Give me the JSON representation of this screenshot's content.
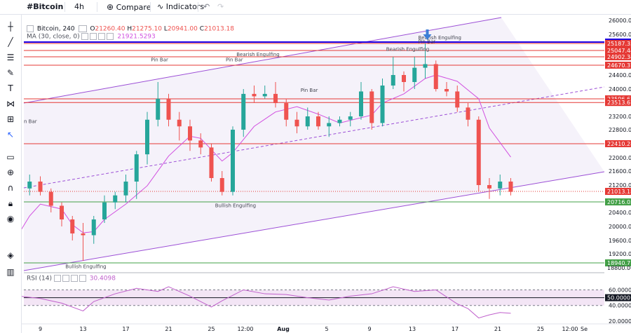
{
  "topbar": {
    "symbol": "#Bitcoin",
    "interval": "4h",
    "compare_label": "Compare",
    "indicators_label": "Indicators"
  },
  "legend": {
    "title": "Bitcoin, 240",
    "open_label": "O",
    "open": "21260.40",
    "high_label": "H",
    "high": "21275.10",
    "low_label": "L",
    "low": "20941.00",
    "close_label": "C",
    "close": "21013.18",
    "ma_label": "MA (30, close, 0)",
    "ma_value": "21921.5293",
    "rsi_label": "RSI (14)",
    "rsi_value": "30.4098"
  },
  "toolbar": {
    "icons": [
      "crosshair-icon",
      "trendline-icon",
      "fib-icon",
      "brush-icon",
      "text-icon",
      "pattern-icon",
      "measure-icon",
      "arrow-icon",
      "ruler-icon",
      "zoom-icon",
      "magnet-icon",
      "lock-icon",
      "eye-icon",
      "layers-icon",
      "trash-icon"
    ]
  },
  "colors": {
    "candle_up": "#26a69a",
    "candle_down": "#ef5350",
    "ma": "#d150e0",
    "channel": "#9c4fd6",
    "resistance": "#e53935",
    "support": "#43a047",
    "blue_level": "#1b00e6",
    "rsi": "#c060cc",
    "arrow": "#3d7ed6"
  },
  "chart_data": {
    "type": "candlestick",
    "interval": "4h",
    "ylim": [
      18400,
      26000
    ],
    "y_ticks": [
      "26000.00",
      "25600.00",
      "24400.00",
      "24000.00",
      "23200.00",
      "22800.00",
      "22000.00",
      "21600.00",
      "21200.00",
      "20400.00",
      "20000.00",
      "19600.00",
      "19200.00"
    ],
    "x_ticks": [
      "9",
      "13",
      "17",
      "21",
      "25",
      "12:00",
      "Aug",
      "5",
      "9",
      "13",
      "17",
      "21",
      "25",
      "12:00",
      "Se"
    ],
    "price_labels": [
      {
        "value": "25367.00",
        "kind": "blue_level"
      },
      {
        "value": "25187.35",
        "kind": "resistance"
      },
      {
        "value": "25047.44",
        "kind": "resistance"
      },
      {
        "value": "24902.34",
        "kind": "resistance"
      },
      {
        "value": "24670.37",
        "kind": "resistance"
      },
      {
        "value": "23596.63",
        "kind": "resistance"
      },
      {
        "value": "23513.67",
        "kind": "resistance"
      },
      {
        "value": "22410.28",
        "kind": "resistance"
      },
      {
        "value": "21013.18",
        "kind": "current"
      },
      {
        "value": "20716.03",
        "kind": "support"
      },
      {
        "value": "18940.77",
        "kind": "support"
      },
      {
        "value": "18800.00",
        "kind": "plain"
      }
    ],
    "annotations": [
      {
        "text": "Pin Bar",
        "x": "Jul 20",
        "y": 24780
      },
      {
        "text": "Pin Bar",
        "x": "Jul 27",
        "y": 24780
      },
      {
        "text": "Bearish Engulfing",
        "x": "Jul 28",
        "y": 24920
      },
      {
        "text": "Pin Bar",
        "x": "Aug 3",
        "y": 23880
      },
      {
        "text": "Bearish Engulfing",
        "x": "Aug 11",
        "y": 25040
      },
      {
        "text": "Pin Bar",
        "x": "Aug 14",
        "y": 25250
      },
      {
        "text": "Bearish Engulfing",
        "x": "Aug 14",
        "y": 25450
      },
      {
        "text": "Bullish Engulfing",
        "x": "Jul 26",
        "y": 20560
      },
      {
        "text": "Bullish Engulfing",
        "x": "Jul 12",
        "y": 18730
      },
      {
        "text": "n Bar",
        "x": "Jul 7",
        "y": 23000
      }
    ],
    "series": [
      {
        "name": "MA (30, close, 0)",
        "points": [
          [
            "Jul 7",
            19800
          ],
          [
            "Jul 8",
            20300
          ],
          [
            "Jul 9",
            20650
          ],
          [
            "Jul 11",
            20500
          ],
          [
            "Jul 12",
            20050
          ],
          [
            "Jul 13",
            19820
          ],
          [
            "Jul 14",
            19850
          ],
          [
            "Jul 15",
            20200
          ],
          [
            "Jul 17",
            20650
          ],
          [
            "Jul 19",
            21180
          ],
          [
            "Jul 21",
            22050
          ],
          [
            "Jul 23",
            22620
          ],
          [
            "Jul 24",
            22560
          ],
          [
            "Jul 26",
            21900
          ],
          [
            "Jul 27",
            22150
          ],
          [
            "Jul 29",
            22900
          ],
          [
            "Jul 31",
            23300
          ],
          [
            "Aug 2",
            23420
          ],
          [
            "Aug 4",
            23250
          ],
          [
            "Aug 6",
            23000
          ],
          [
            "Aug 9",
            23230
          ],
          [
            "Aug 10",
            23500
          ],
          [
            "Aug 12",
            23800
          ],
          [
            "Aug 14",
            24300
          ],
          [
            "Aug 15",
            24400
          ],
          [
            "Aug 17",
            24220
          ],
          [
            "Aug 19",
            23600
          ],
          [
            "Aug 20",
            22850
          ],
          [
            "Aug 22",
            22020
          ]
        ]
      },
      {
        "name": "RSI (14)",
        "ylim": [
          20,
          75
        ],
        "points": [
          [
            "Jul 7",
            52
          ],
          [
            "Jul 9",
            49
          ],
          [
            "Jul 11",
            43
          ],
          [
            "Jul 13",
            33
          ],
          [
            "Jul 14",
            45
          ],
          [
            "Jul 16",
            55
          ],
          [
            "Jul 18",
            62
          ],
          [
            "Jul 20",
            58
          ],
          [
            "Jul 21",
            64
          ],
          [
            "Jul 23",
            52
          ],
          [
            "Jul 25",
            38
          ],
          [
            "Jul 26",
            46
          ],
          [
            "Jul 28",
            60
          ],
          [
            "Jul 30",
            55
          ],
          [
            "Aug 1",
            54
          ],
          [
            "Aug 3",
            50
          ],
          [
            "Aug 5",
            47
          ],
          [
            "Aug 7",
            52
          ],
          [
            "Aug 9",
            55
          ],
          [
            "Aug 11",
            64
          ],
          [
            "Aug 13",
            58
          ],
          [
            "Aug 15",
            60
          ],
          [
            "Aug 17",
            42
          ],
          [
            "Aug 18",
            36
          ],
          [
            "Aug 19",
            24
          ],
          [
            "Aug 20",
            28
          ],
          [
            "Aug 21",
            31
          ],
          [
            "Aug 22",
            30
          ]
        ]
      }
    ],
    "rsi_levels": [
      "60.0000",
      "50.0000",
      "40.0000",
      "20.0000"
    ],
    "candles": [
      [
        "Jul 7",
        20900,
        21400,
        20500,
        21100
      ],
      [
        "Jul 8",
        21100,
        21500,
        20900,
        21300
      ],
      [
        "Jul 9",
        21300,
        21450,
        20900,
        21000
      ],
      [
        "Jul 10",
        21000,
        21100,
        20400,
        20600
      ],
      [
        "Jul 11",
        20600,
        20700,
        20000,
        20200
      ],
      [
        "Jul 12",
        20200,
        20300,
        19600,
        19800
      ],
      [
        "Jul 13",
        19800,
        20100,
        19000,
        19750
      ],
      [
        "Jul 14",
        19750,
        20300,
        19500,
        20200
      ],
      [
        "Jul 15",
        20200,
        20900,
        20100,
        20700
      ],
      [
        "Jul 16",
        20700,
        21000,
        20500,
        20900
      ],
      [
        "Jul 17",
        20900,
        21500,
        20700,
        21300
      ],
      [
        "Jul 18",
        21300,
        22200,
        20800,
        22100
      ],
      [
        "Jul 19",
        22100,
        23300,
        21800,
        23100
      ],
      [
        "Jul 20",
        23100,
        24200,
        22900,
        23600
      ],
      [
        "Jul 21",
        23600,
        23800,
        22900,
        23100
      ],
      [
        "Jul 22",
        23100,
        23300,
        22500,
        22900
      ],
      [
        "Jul 23",
        22900,
        23100,
        22200,
        22500
      ],
      [
        "Jul 24",
        22500,
        22700,
        22100,
        22300
      ],
      [
        "Jul 25",
        22300,
        22400,
        21300,
        21400
      ],
      [
        "Jul 26",
        21400,
        21600,
        20900,
        21000
      ],
      [
        "Jul 27",
        21000,
        22900,
        20900,
        22800
      ],
      [
        "Jul 28",
        22800,
        24000,
        22600,
        23800
      ],
      [
        "Jul 29",
        23800,
        24100,
        23500,
        23700
      ],
      [
        "Jul 30",
        23700,
        24100,
        23600,
        23800
      ],
      [
        "Jul 31",
        23800,
        24200,
        23400,
        23500
      ],
      [
        "Aug 1",
        23500,
        23600,
        22900,
        23100
      ],
      [
        "Aug 2",
        23100,
        23300,
        22700,
        22900
      ],
      [
        "Aug 3",
        22900,
        23400,
        22800,
        23200
      ],
      [
        "Aug 4",
        23200,
        23300,
        22800,
        22900
      ],
      [
        "Aug 5",
        22900,
        23200,
        22600,
        23000
      ],
      [
        "Aug 6",
        23000,
        23200,
        22900,
        23100
      ],
      [
        "Aug 7",
        23100,
        23300,
        22900,
        23200
      ],
      [
        "Aug 8",
        23200,
        24200,
        23100,
        23900
      ],
      [
        "Aug 9",
        23900,
        24000,
        22800,
        23000
      ],
      [
        "Aug 10",
        23000,
        24300,
        22900,
        24100
      ],
      [
        "Aug 11",
        24100,
        24900,
        24000,
        24400
      ],
      [
        "Aug 12",
        24400,
        24500,
        23900,
        24200
      ],
      [
        "Aug 13",
        24200,
        24900,
        24000,
        24600
      ],
      [
        "Aug 14",
        24600,
        25200,
        24300,
        24700
      ],
      [
        "Aug 15",
        24700,
        24800,
        23900,
        24000
      ],
      [
        "Aug 16",
        24000,
        24200,
        23700,
        23900
      ],
      [
        "Aug 17",
        23900,
        24100,
        23300,
        23400
      ],
      [
        "Aug 18",
        23400,
        23500,
        22900,
        23100
      ],
      [
        "Aug 19",
        23100,
        23200,
        21000,
        21200
      ],
      [
        "Aug 20",
        21200,
        21400,
        20800,
        21100
      ],
      [
        "Aug 21",
        21100,
        21500,
        20900,
        21300
      ],
      [
        "Aug 22",
        21300,
        21400,
        20900,
        21000
      ]
    ]
  }
}
